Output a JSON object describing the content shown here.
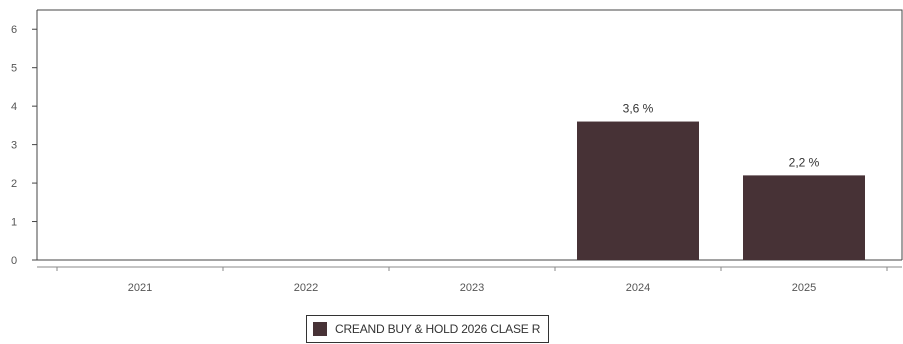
{
  "chart_data": {
    "type": "bar",
    "categories": [
      "2021",
      "2022",
      "2023",
      "2024",
      "2025"
    ],
    "series": [
      {
        "name": "CREAND BUY & HOLD 2026 CLASE R",
        "values": [
          null,
          null,
          null,
          3.6,
          2.2
        ],
        "labels": [
          "",
          "",
          "",
          "3,6 %",
          "2,2 %"
        ],
        "color": "#473236"
      }
    ],
    "yticks": [
      "0",
      "1",
      "2",
      "3",
      "4",
      "5",
      "6"
    ],
    "ylim": [
      0,
      6.5
    ],
    "grid": false,
    "legend_position": "bottom-center"
  }
}
